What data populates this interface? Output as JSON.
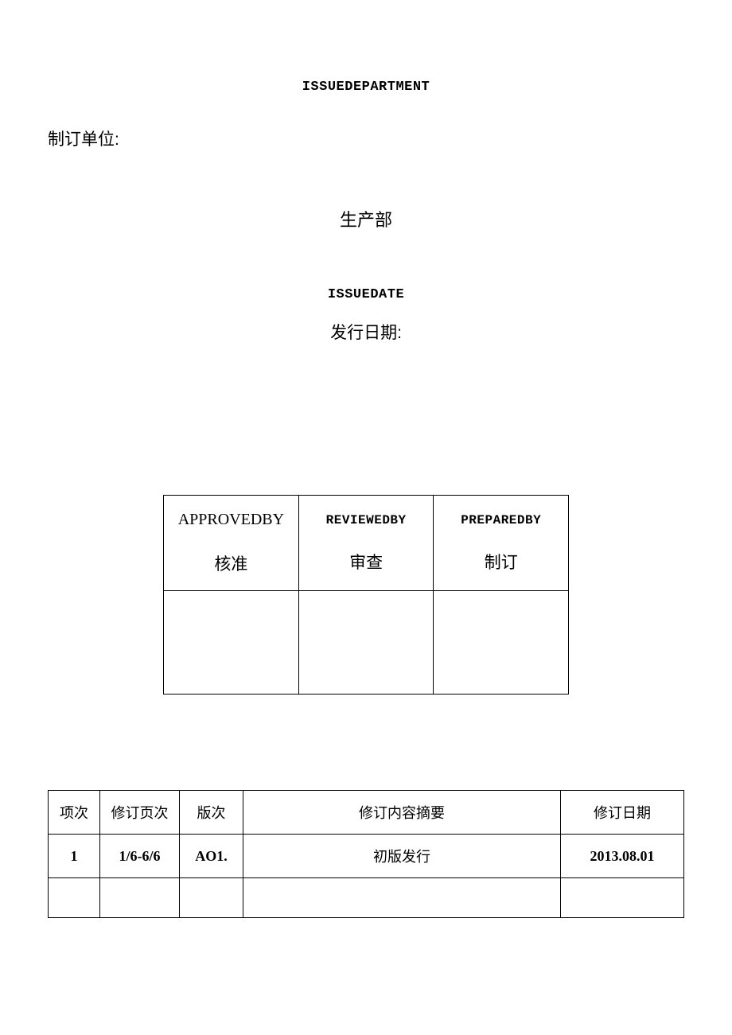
{
  "header": {
    "issue_dept_en": "ISSUEDEPARTMENT",
    "unit_label": "制订单位:",
    "dept_name": "生产部",
    "issue_date_en": "ISSUEDATE",
    "issue_date_cn": "发行日期:"
  },
  "signoff": {
    "approved_en": "APPROVEDBY",
    "approved_cn": "核准",
    "reviewed_en": "REVIEWEDBY",
    "reviewed_cn": "审查",
    "prepared_en": "PREPAREDBY",
    "prepared_cn": "制订"
  },
  "revision_table": {
    "headers": {
      "item": "项次",
      "page": "修订页次",
      "version": "版次",
      "summary": "修订内容摘要",
      "date": "修订日期"
    },
    "rows": [
      {
        "item": "1",
        "page": "1/6-6/6",
        "version": "AO1.",
        "summary": "初版发行",
        "date": "2013.08.01"
      }
    ]
  }
}
